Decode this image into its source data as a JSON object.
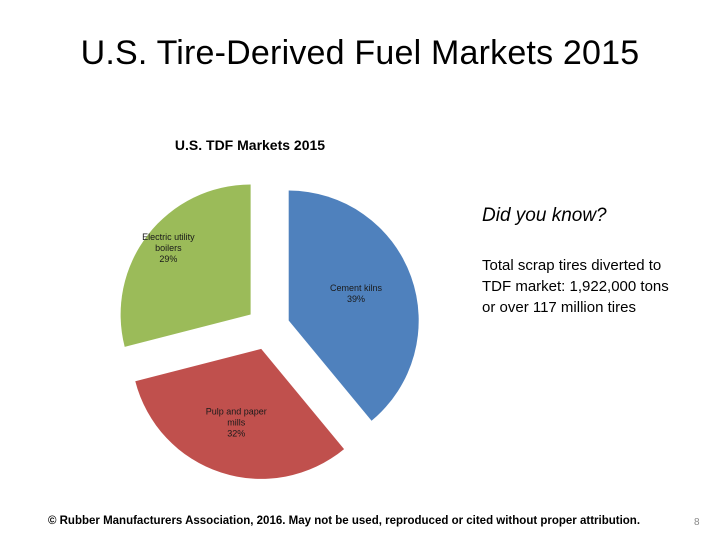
{
  "slide": {
    "title": "U.S. Tire-Derived Fuel Markets 2015",
    "footer": "© Rubber Manufacturers Association, 2016.  May not be used, reproduced or cited without proper attribution.",
    "page_number": "8"
  },
  "sidebar": {
    "heading": "Did you know?",
    "fact": "Total scrap tires diverted to TDF market:  1,922,000  tons or over 117 million tires"
  },
  "chart_data": {
    "type": "pie",
    "title": "U.S. TDF Markets 2015",
    "exploded": true,
    "slices": [
      {
        "name": "Cement kilns",
        "value": 39,
        "label": "39%",
        "color": "#4f81bd"
      },
      {
        "name": "Pulp and paper mills",
        "value": 32,
        "label": "32%",
        "color": "#c0504d"
      },
      {
        "name": "Electric utility boilers",
        "value": 29,
        "label": "29%",
        "color": "#9bbb59"
      }
    ]
  }
}
